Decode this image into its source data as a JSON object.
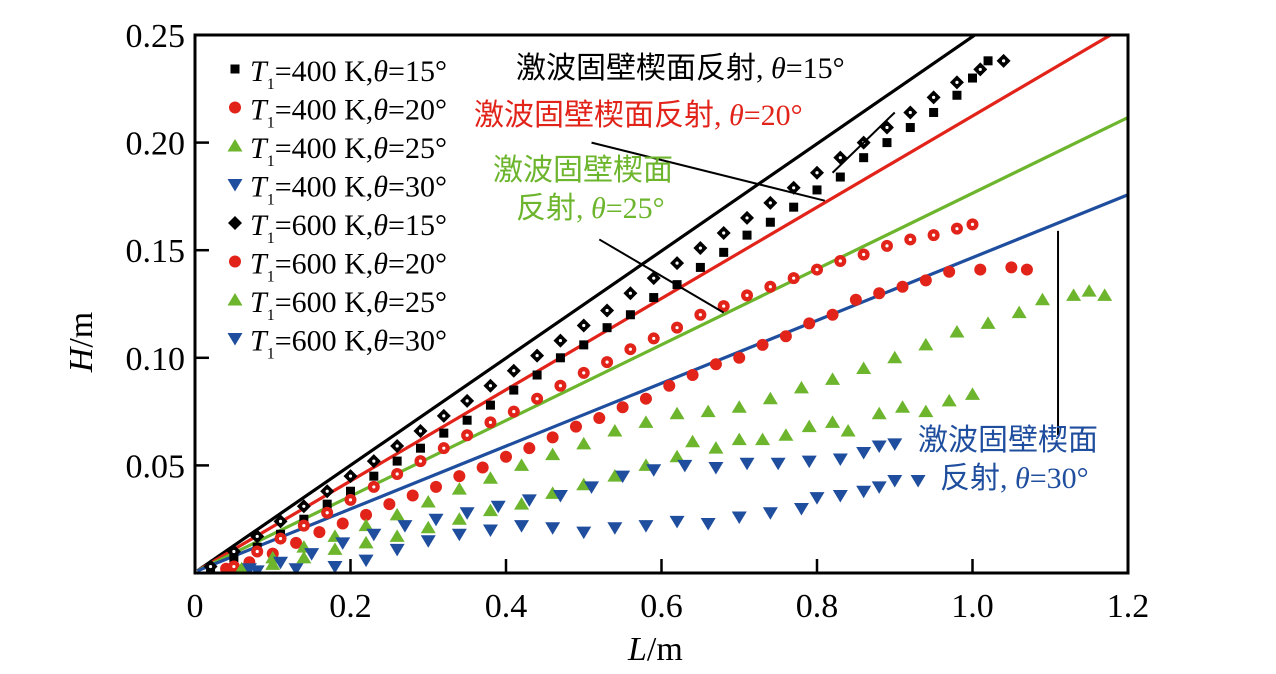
{
  "chart_data": {
    "type": "scatter",
    "title": "",
    "xlabel": "L/m",
    "ylabel": "H/m",
    "xlabel_parts": {
      "var": "L",
      "unit": "/m"
    },
    "ylabel_parts": {
      "var": "H",
      "unit": "/m"
    },
    "xlim": [
      0,
      1.2
    ],
    "ylim": [
      0,
      0.25
    ],
    "xticks": [
      0,
      0.2,
      0.4,
      0.6,
      0.8,
      1.0,
      1.2
    ],
    "xtick_labels": [
      "0",
      "0.2",
      "0.4",
      "0.6",
      "0.8",
      "1.0",
      "1.2"
    ],
    "yticks": [
      0.05,
      0.1,
      0.15,
      0.2,
      0.25
    ],
    "ytick_labels": [
      "0.05",
      "0.10",
      "0.15",
      "0.20",
      "0.25"
    ],
    "grid": false,
    "legend_position": "top-left",
    "lines": [
      {
        "name": "激波固壁楔面反射, θ=15°",
        "color": "#000000",
        "start": [
          0.003,
          0.001
        ],
        "slope": 0.249
      },
      {
        "name": "激波固壁楔面反射, θ=20°",
        "color": "#e2231a",
        "start": [
          0.003,
          0.001
        ],
        "slope": 0.212
      },
      {
        "name": "激波固壁楔面反射, θ=25°",
        "color": "#6cb52d",
        "start": [
          0.003,
          0.001
        ],
        "slope": 0.176
      },
      {
        "name": "激波固壁楔面反射, θ=30°",
        "color": "#1f4e9e",
        "start": [
          0.003,
          0.001
        ],
        "slope": 0.146
      }
    ],
    "annotations": [
      {
        "text_cn": "激波固壁楔面反射,",
        "text_theta": "θ=15°",
        "color": "#000000",
        "anchor": [
          0.41,
          0.236
        ],
        "pointer_from": [
          0.82,
          0.186
        ],
        "pointer_to": [
          0.9,
          0.214
        ]
      },
      {
        "text_cn": "激波固壁楔面反射,",
        "text_theta": "θ=20°",
        "color": "#e2231a",
        "anchor": [
          0.35,
          0.203
        ],
        "pointer_from": [
          0.51,
          0.2
        ],
        "pointer_to": [
          0.81,
          0.173
        ]
      },
      {
        "text_cn_line1": "激波固壁楔面",
        "text_cn_line2": "反射,",
        "text_theta": "θ=25°",
        "color": "#6cb52d",
        "anchor": [
          0.45,
          0.175
        ],
        "pointer_from": [
          0.52,
          0.155
        ],
        "pointer_to": [
          0.68,
          0.121
        ]
      },
      {
        "text_cn_line1": "激波固壁楔面",
        "text_cn_line2": "反射,",
        "text_theta": "θ=30°",
        "color": "#1f4e9e",
        "anchor": [
          1.09,
          0.05
        ],
        "pointer_from": [
          1.11,
          0.064
        ],
        "pointer_to": [
          1.11,
          0.159
        ]
      }
    ],
    "series": [
      {
        "name": "T1=400 K,θ=15°",
        "T": "400",
        "theta": "15",
        "marker": "square",
        "color": "#000000",
        "points": [
          [
            0.02,
            0.002
          ],
          [
            0.05,
            0.007
          ],
          [
            0.08,
            0.012
          ],
          [
            0.11,
            0.018
          ],
          [
            0.14,
            0.025
          ],
          [
            0.17,
            0.032
          ],
          [
            0.2,
            0.038
          ],
          [
            0.23,
            0.045
          ],
          [
            0.26,
            0.052
          ],
          [
            0.29,
            0.058
          ],
          [
            0.32,
            0.065
          ],
          [
            0.35,
            0.071
          ],
          [
            0.38,
            0.078
          ],
          [
            0.41,
            0.085
          ],
          [
            0.44,
            0.092
          ],
          [
            0.47,
            0.1
          ],
          [
            0.5,
            0.106
          ],
          [
            0.53,
            0.114
          ],
          [
            0.56,
            0.12
          ],
          [
            0.59,
            0.128
          ],
          [
            0.62,
            0.134
          ],
          [
            0.65,
            0.142
          ],
          [
            0.68,
            0.149
          ],
          [
            0.71,
            0.157
          ],
          [
            0.74,
            0.163
          ],
          [
            0.77,
            0.17
          ],
          [
            0.8,
            0.178
          ],
          [
            0.83,
            0.184
          ],
          [
            0.86,
            0.193
          ],
          [
            0.89,
            0.2
          ],
          [
            0.92,
            0.207
          ],
          [
            0.95,
            0.214
          ],
          [
            0.98,
            0.222
          ],
          [
            1.0,
            0.23
          ],
          [
            1.02,
            0.238
          ]
        ]
      },
      {
        "name": "T1=400 K,θ=20°",
        "T": "400",
        "theta": "20",
        "marker": "circle",
        "color": "#e2231a",
        "points": [
          [
            0.04,
            0.002
          ],
          [
            0.07,
            0.005
          ],
          [
            0.1,
            0.009
          ],
          [
            0.13,
            0.014
          ],
          [
            0.16,
            0.019
          ],
          [
            0.19,
            0.023
          ],
          [
            0.22,
            0.027
          ],
          [
            0.25,
            0.032
          ],
          [
            0.28,
            0.036
          ],
          [
            0.31,
            0.04
          ],
          [
            0.34,
            0.045
          ],
          [
            0.37,
            0.049
          ],
          [
            0.4,
            0.054
          ],
          [
            0.43,
            0.058
          ],
          [
            0.46,
            0.063
          ],
          [
            0.49,
            0.068
          ],
          [
            0.52,
            0.072
          ],
          [
            0.55,
            0.077
          ],
          [
            0.58,
            0.081
          ],
          [
            0.61,
            0.087
          ],
          [
            0.64,
            0.092
          ],
          [
            0.67,
            0.097
          ],
          [
            0.7,
            0.1
          ],
          [
            0.73,
            0.106
          ],
          [
            0.76,
            0.11
          ],
          [
            0.79,
            0.116
          ],
          [
            0.82,
            0.12
          ],
          [
            0.85,
            0.127
          ],
          [
            0.88,
            0.13
          ],
          [
            0.91,
            0.133
          ],
          [
            0.94,
            0.136
          ],
          [
            0.97,
            0.14
          ],
          [
            1.01,
            0.141
          ],
          [
            1.05,
            0.142
          ],
          [
            1.07,
            0.141
          ]
        ]
      },
      {
        "name": "T1=400 K,θ=25°",
        "T": "400",
        "theta": "25",
        "marker": "triangle-up",
        "color": "#6cb52d",
        "points": [
          [
            0.06,
            0.001
          ],
          [
            0.1,
            0.004
          ],
          [
            0.14,
            0.007
          ],
          [
            0.18,
            0.011
          ],
          [
            0.22,
            0.014
          ],
          [
            0.26,
            0.017
          ],
          [
            0.3,
            0.021
          ],
          [
            0.34,
            0.025
          ],
          [
            0.38,
            0.029
          ],
          [
            0.42,
            0.032
          ],
          [
            0.46,
            0.037
          ],
          [
            0.5,
            0.041
          ],
          [
            0.54,
            0.045
          ],
          [
            0.58,
            0.05
          ],
          [
            0.62,
            0.054
          ],
          [
            0.64,
            0.061
          ],
          [
            0.67,
            0.058
          ],
          [
            0.7,
            0.062
          ],
          [
            0.73,
            0.062
          ],
          [
            0.76,
            0.064
          ],
          [
            0.79,
            0.068
          ],
          [
            0.82,
            0.07
          ],
          [
            0.84,
            0.066
          ],
          [
            0.88,
            0.074
          ],
          [
            0.91,
            0.077
          ],
          [
            0.94,
            0.075
          ],
          [
            0.97,
            0.08
          ],
          [
            1.0,
            0.083
          ]
        ]
      },
      {
        "name": "T1=400 K,θ=30°",
        "T": "400",
        "theta": "30",
        "marker": "triangle-down",
        "color": "#1f4e9e",
        "points": [
          [
            0.08,
            0.001
          ],
          [
            0.13,
            0.002
          ],
          [
            0.18,
            0.003
          ],
          [
            0.22,
            0.006
          ],
          [
            0.26,
            0.011
          ],
          [
            0.3,
            0.015
          ],
          [
            0.34,
            0.018
          ],
          [
            0.38,
            0.02
          ],
          [
            0.42,
            0.022
          ],
          [
            0.46,
            0.021
          ],
          [
            0.5,
            0.019
          ],
          [
            0.54,
            0.021
          ],
          [
            0.58,
            0.022
          ],
          [
            0.62,
            0.024
          ],
          [
            0.66,
            0.023
          ],
          [
            0.7,
            0.026
          ],
          [
            0.74,
            0.028
          ],
          [
            0.78,
            0.03
          ],
          [
            0.8,
            0.035
          ],
          [
            0.83,
            0.036
          ],
          [
            0.86,
            0.038
          ],
          [
            0.88,
            0.04
          ],
          [
            0.9,
            0.043
          ],
          [
            0.93,
            0.043
          ]
        ]
      },
      {
        "name": "T1=600 K,θ=15°",
        "T": "600",
        "theta": "15",
        "marker": "diamond",
        "color": "#000000",
        "points": [
          [
            0.02,
            0.003
          ],
          [
            0.05,
            0.01
          ],
          [
            0.08,
            0.017
          ],
          [
            0.11,
            0.024
          ],
          [
            0.14,
            0.031
          ],
          [
            0.17,
            0.038
          ],
          [
            0.2,
            0.045
          ],
          [
            0.23,
            0.052
          ],
          [
            0.26,
            0.059
          ],
          [
            0.29,
            0.066
          ],
          [
            0.32,
            0.073
          ],
          [
            0.35,
            0.08
          ],
          [
            0.38,
            0.087
          ],
          [
            0.41,
            0.094
          ],
          [
            0.44,
            0.101
          ],
          [
            0.47,
            0.108
          ],
          [
            0.5,
            0.115
          ],
          [
            0.53,
            0.122
          ],
          [
            0.56,
            0.13
          ],
          [
            0.59,
            0.137
          ],
          [
            0.62,
            0.144
          ],
          [
            0.65,
            0.151
          ],
          [
            0.68,
            0.158
          ],
          [
            0.71,
            0.165
          ],
          [
            0.74,
            0.172
          ],
          [
            0.77,
            0.179
          ],
          [
            0.8,
            0.186
          ],
          [
            0.83,
            0.193
          ],
          [
            0.86,
            0.2
          ],
          [
            0.89,
            0.207
          ],
          [
            0.92,
            0.214
          ],
          [
            0.95,
            0.221
          ],
          [
            0.98,
            0.228
          ],
          [
            1.01,
            0.234
          ],
          [
            1.04,
            0.238
          ]
        ]
      },
      {
        "name": "T1=600 K,θ=20°",
        "T": "600",
        "theta": "20",
        "marker": "circle",
        "color": "#e2231a",
        "points": [
          [
            0.05,
            0.003
          ],
          [
            0.08,
            0.01
          ],
          [
            0.11,
            0.016
          ],
          [
            0.14,
            0.022
          ],
          [
            0.17,
            0.028
          ],
          [
            0.2,
            0.034
          ],
          [
            0.23,
            0.04
          ],
          [
            0.26,
            0.046
          ],
          [
            0.29,
            0.052
          ],
          [
            0.32,
            0.058
          ],
          [
            0.35,
            0.064
          ],
          [
            0.38,
            0.07
          ],
          [
            0.41,
            0.075
          ],
          [
            0.44,
            0.081
          ],
          [
            0.47,
            0.087
          ],
          [
            0.5,
            0.093
          ],
          [
            0.53,
            0.098
          ],
          [
            0.56,
            0.104
          ],
          [
            0.59,
            0.109
          ],
          [
            0.62,
            0.114
          ],
          [
            0.65,
            0.12
          ],
          [
            0.68,
            0.124
          ],
          [
            0.71,
            0.129
          ],
          [
            0.74,
            0.133
          ],
          [
            0.77,
            0.137
          ],
          [
            0.8,
            0.141
          ],
          [
            0.83,
            0.145
          ],
          [
            0.86,
            0.148
          ],
          [
            0.89,
            0.152
          ],
          [
            0.92,
            0.155
          ],
          [
            0.95,
            0.157
          ],
          [
            0.98,
            0.16
          ],
          [
            1.0,
            0.162
          ]
        ]
      },
      {
        "name": "T1=600 K,θ=25°",
        "T": "600",
        "theta": "25",
        "marker": "triangle-up",
        "color": "#6cb52d",
        "points": [
          [
            0.06,
            0.002
          ],
          [
            0.1,
            0.007
          ],
          [
            0.14,
            0.012
          ],
          [
            0.18,
            0.017
          ],
          [
            0.22,
            0.022
          ],
          [
            0.26,
            0.027
          ],
          [
            0.3,
            0.033
          ],
          [
            0.34,
            0.039
          ],
          [
            0.38,
            0.044
          ],
          [
            0.42,
            0.05
          ],
          [
            0.46,
            0.055
          ],
          [
            0.5,
            0.06
          ],
          [
            0.54,
            0.066
          ],
          [
            0.58,
            0.07
          ],
          [
            0.62,
            0.074
          ],
          [
            0.66,
            0.075
          ],
          [
            0.7,
            0.077
          ],
          [
            0.74,
            0.081
          ],
          [
            0.78,
            0.086
          ],
          [
            0.82,
            0.09
          ],
          [
            0.86,
            0.095
          ],
          [
            0.9,
            0.1
          ],
          [
            0.94,
            0.106
          ],
          [
            0.98,
            0.112
          ],
          [
            1.02,
            0.116
          ],
          [
            1.06,
            0.121
          ],
          [
            1.09,
            0.127
          ],
          [
            1.13,
            0.129
          ],
          [
            1.15,
            0.131
          ],
          [
            1.17,
            0.129
          ]
        ]
      },
      {
        "name": "T1=600 K,θ=30°",
        "T": "600",
        "theta": "30",
        "marker": "triangle-down",
        "color": "#1f4e9e",
        "points": [
          [
            0.07,
            0.002
          ],
          [
            0.11,
            0.005
          ],
          [
            0.15,
            0.009
          ],
          [
            0.19,
            0.014
          ],
          [
            0.23,
            0.018
          ],
          [
            0.27,
            0.022
          ],
          [
            0.31,
            0.025
          ],
          [
            0.35,
            0.028
          ],
          [
            0.39,
            0.031
          ],
          [
            0.43,
            0.034
          ],
          [
            0.47,
            0.036
          ],
          [
            0.51,
            0.04
          ],
          [
            0.55,
            0.045
          ],
          [
            0.59,
            0.048
          ],
          [
            0.63,
            0.05
          ],
          [
            0.67,
            0.049
          ],
          [
            0.71,
            0.051
          ],
          [
            0.75,
            0.051
          ],
          [
            0.79,
            0.052
          ],
          [
            0.83,
            0.053
          ],
          [
            0.86,
            0.056
          ],
          [
            0.88,
            0.059
          ],
          [
            0.9,
            0.06
          ]
        ]
      }
    ]
  }
}
